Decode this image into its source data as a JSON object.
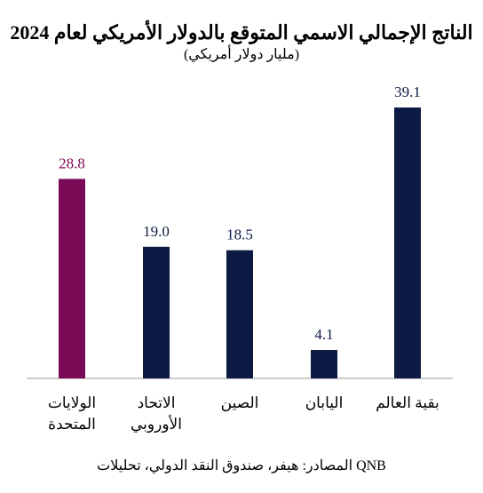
{
  "title": "الناتج الإجمالي الاسمي المتوقع بالدولار الأمريكي لعام 2024",
  "subtitle": "(مليار دولار أمريكي)",
  "source": "المصادر: هيفر، صندوق النقد الدولي، تحليلات QNB",
  "colors": {
    "highlight": "#7a0a55",
    "default": "#0d1a44",
    "axis": "#999999"
  },
  "chart_data": {
    "type": "bar",
    "title": "الناتج الإجمالي الاسمي المتوقع بالدولار الأمريكي لعام 2024",
    "subtitle": "(مليار دولار أمريكي)",
    "categories": [
      [
        "الولايات",
        "المتحدة"
      ],
      [
        "الاتحاد",
        "الأوروبي"
      ],
      [
        "الصين"
      ],
      [
        "اليابان"
      ],
      [
        "بقية العالم"
      ]
    ],
    "values": [
      28.8,
      19.0,
      18.5,
      4.1,
      39.1
    ],
    "value_labels": [
      "28.8",
      "19.0",
      "18.5",
      "4.1",
      "39.1"
    ],
    "highlight_index": 0,
    "ylim": [
      0,
      40
    ],
    "grid": false,
    "legend": "none"
  }
}
